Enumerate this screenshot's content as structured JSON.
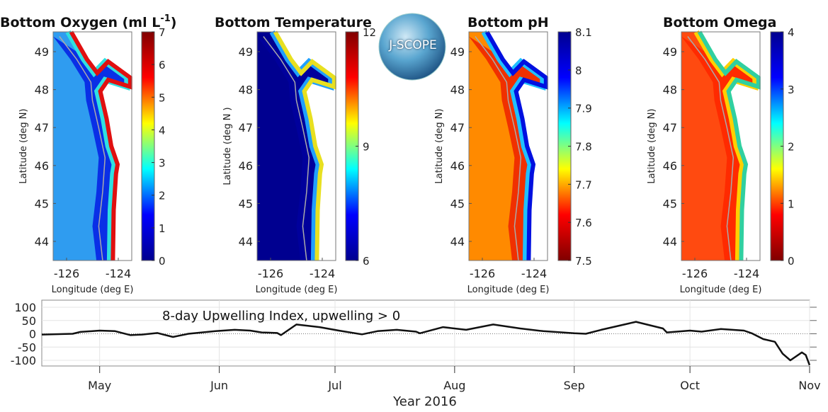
{
  "logo": {
    "text": "J-SCOPE"
  },
  "maps": [
    {
      "title": "Bottom Oxygen (ml L",
      "title_sup": "-1",
      "title_end": ")",
      "ylabel": "Latitude (deg N)",
      "xlabel": "Longitude (deg E)",
      "lat_ticks": [
        "49",
        "48",
        "47",
        "46",
        "45",
        "44"
      ],
      "lon_ticks": [
        "-126",
        "-124"
      ],
      "colorbar": {
        "ticks": [
          "7",
          "6",
          "5",
          "4",
          "3",
          "2",
          "1",
          "0"
        ],
        "reversed": false,
        "min": 0,
        "max": 7
      },
      "colors": {
        "offshore": "#2f9cf0",
        "shelf": "#0a2fe6",
        "near": "#e01010",
        "mid": "#30e0e0"
      }
    },
    {
      "title": "Bottom Temperature",
      "ylabel": "Latitude (deg N )",
      "xlabel": "Longitude (deg E)",
      "lat_ticks": [
        "49",
        "48",
        "47",
        "46",
        "45",
        "44"
      ],
      "lon_ticks": [
        "-126",
        "-124"
      ],
      "colorbar": {
        "ticks": [
          "12",
          "9",
          "6"
        ],
        "reversed": false,
        "min": 6,
        "max": 12
      },
      "colors": {
        "offshore": "#000090",
        "shelf": "#00009c",
        "near": "#e8e020",
        "mid": "#20a0ff"
      }
    },
    {
      "title": "Bottom pH",
      "ylabel": "Latitude (deg N)",
      "xlabel": "Longitude (deg E)",
      "lat_ticks": [
        "49",
        "48",
        "47",
        "46",
        "45",
        "44"
      ],
      "lon_ticks": [
        "-126",
        "-124"
      ],
      "colorbar": {
        "ticks": [
          "8.1",
          "8",
          "7.9",
          "7.8",
          "7.7",
          "7.6",
          "7.5"
        ],
        "reversed": true,
        "min": 7.5,
        "max": 8.1
      },
      "colors": {
        "offshore": "#ff8a00",
        "shelf": "#f03000",
        "near": "#0010e0",
        "mid": "#20c0ff"
      }
    },
    {
      "title": "Bottom Omega",
      "ylabel": "Latitude (deg N)",
      "xlabel": "Longitude (deg E)",
      "lat_ticks": [
        "49",
        "48",
        "47",
        "46",
        "45",
        "44"
      ],
      "lon_ticks": [
        "-126",
        "-124"
      ],
      "colorbar": {
        "ticks": [
          "4",
          "3",
          "2",
          "1",
          "0"
        ],
        "reversed": true,
        "min": 0,
        "max": 4
      },
      "colors": {
        "offshore": "#ff4a10",
        "shelf": "#ff2a00",
        "near": "#30d0a0",
        "mid": "#ffd000"
      }
    }
  ],
  "chart_data": {
    "type": "line",
    "title": "8-day Upwelling Index, upwelling > 0",
    "xlabel": "Year 2016",
    "ylabel": "",
    "x_tick_labels": [
      "May",
      "Jun",
      "Jul",
      "Aug",
      "Sep",
      "Oct",
      "Nov"
    ],
    "y_tick_labels": [
      "100",
      "50",
      "0",
      "-50",
      "-100"
    ],
    "xlim": [
      "2016-04-16",
      "2016-11-01"
    ],
    "ylim": [
      -120,
      120
    ],
    "grid": true,
    "zero_line": "dotted",
    "series": [
      {
        "color": "#111111",
        "x": [
          "2016-04-16",
          "2016-04-24",
          "2016-04-26",
          "2016-05-01",
          "2016-05-05",
          "2016-05-09",
          "2016-05-12",
          "2016-05-16",
          "2016-05-20",
          "2016-05-24",
          "2016-05-31",
          "2016-06-05",
          "2016-06-09",
          "2016-06-12",
          "2016-06-16",
          "2016-06-17",
          "2016-06-21",
          "2016-06-27",
          "2016-07-02",
          "2016-07-08",
          "2016-07-12",
          "2016-07-17",
          "2016-07-22",
          "2016-07-23",
          "2016-07-29",
          "2016-08-04",
          "2016-08-11",
          "2016-08-18",
          "2016-08-24",
          "2016-09-01",
          "2016-09-04",
          "2016-09-08",
          "2016-09-17",
          "2016-09-24",
          "2016-09-25",
          "2016-10-01",
          "2016-10-04",
          "2016-10-09",
          "2016-10-15",
          "2016-10-17",
          "2016-10-20",
          "2016-10-23",
          "2016-10-25",
          "2016-10-27",
          "2016-10-30",
          "2016-10-31",
          "2016-11-01"
        ],
        "y": [
          -3,
          0,
          7,
          12,
          10,
          -5,
          -3,
          3,
          -12,
          0,
          10,
          15,
          12,
          5,
          3,
          -5,
          35,
          25,
          12,
          -2,
          10,
          15,
          8,
          2,
          25,
          15,
          35,
          20,
          10,
          2,
          0,
          15,
          45,
          20,
          5,
          12,
          8,
          18,
          12,
          2,
          -20,
          -30,
          -75,
          -100,
          -70,
          -80,
          -120
        ]
      }
    ]
  }
}
